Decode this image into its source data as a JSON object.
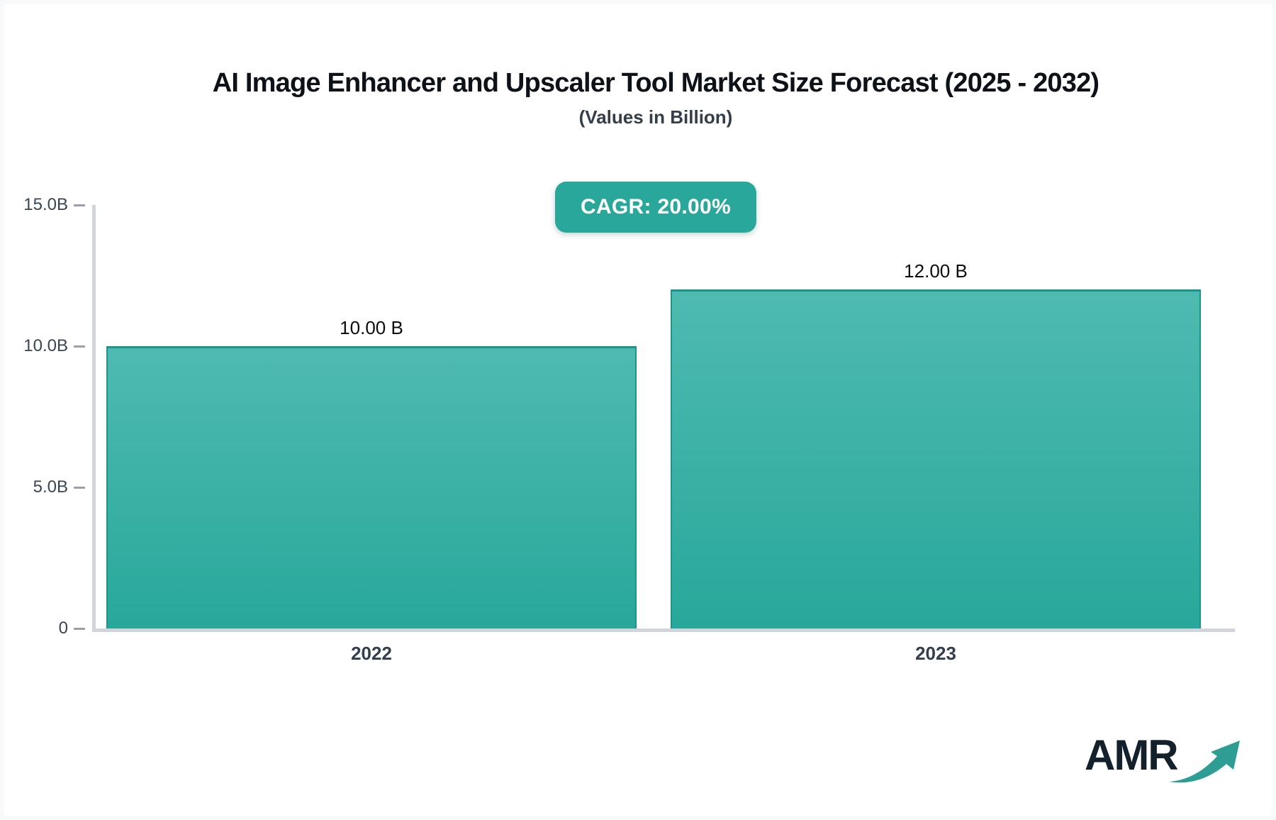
{
  "title": "AI Image Enhancer and Upscaler Tool Market Size Forecast (2025 - 2032)",
  "subtitle": "(Values in Billion)",
  "cagr_badge": "CAGR: 20.00%",
  "logo_text": "AMR",
  "chart_data": {
    "type": "bar",
    "title": "AI Image Enhancer and Upscaler Tool Market Size Forecast (2025 - 2032)",
    "subtitle": "(Values in Billion)",
    "cagr_percent": "20.00%",
    "categories": [
      "2022",
      "2023"
    ],
    "values": [
      10.0,
      12.0
    ],
    "value_labels": [
      "10.00 B",
      "12.00 B"
    ],
    "xlabel": "",
    "ylabel": "",
    "ylim": [
      0,
      15
    ],
    "yticks": [
      {
        "value": 0,
        "label": "0"
      },
      {
        "value": 5,
        "label": "5.0B"
      },
      {
        "value": 10,
        "label": "10.0B"
      },
      {
        "value": 15,
        "label": "15.0B"
      }
    ],
    "grid": false,
    "legend": false,
    "colors": {
      "bar_gradient_top": "#4fbab0",
      "bar_gradient_bottom": "#28a89a",
      "bar_border": "#1d948b",
      "badge_bg": "#2aa79b",
      "axis_line": "#d2d5dc",
      "tick_dash": "#9aa0ab",
      "tick_text": "#3a4553",
      "category_text": "#333f4f",
      "logo_arrow": "#2e9d94"
    }
  }
}
